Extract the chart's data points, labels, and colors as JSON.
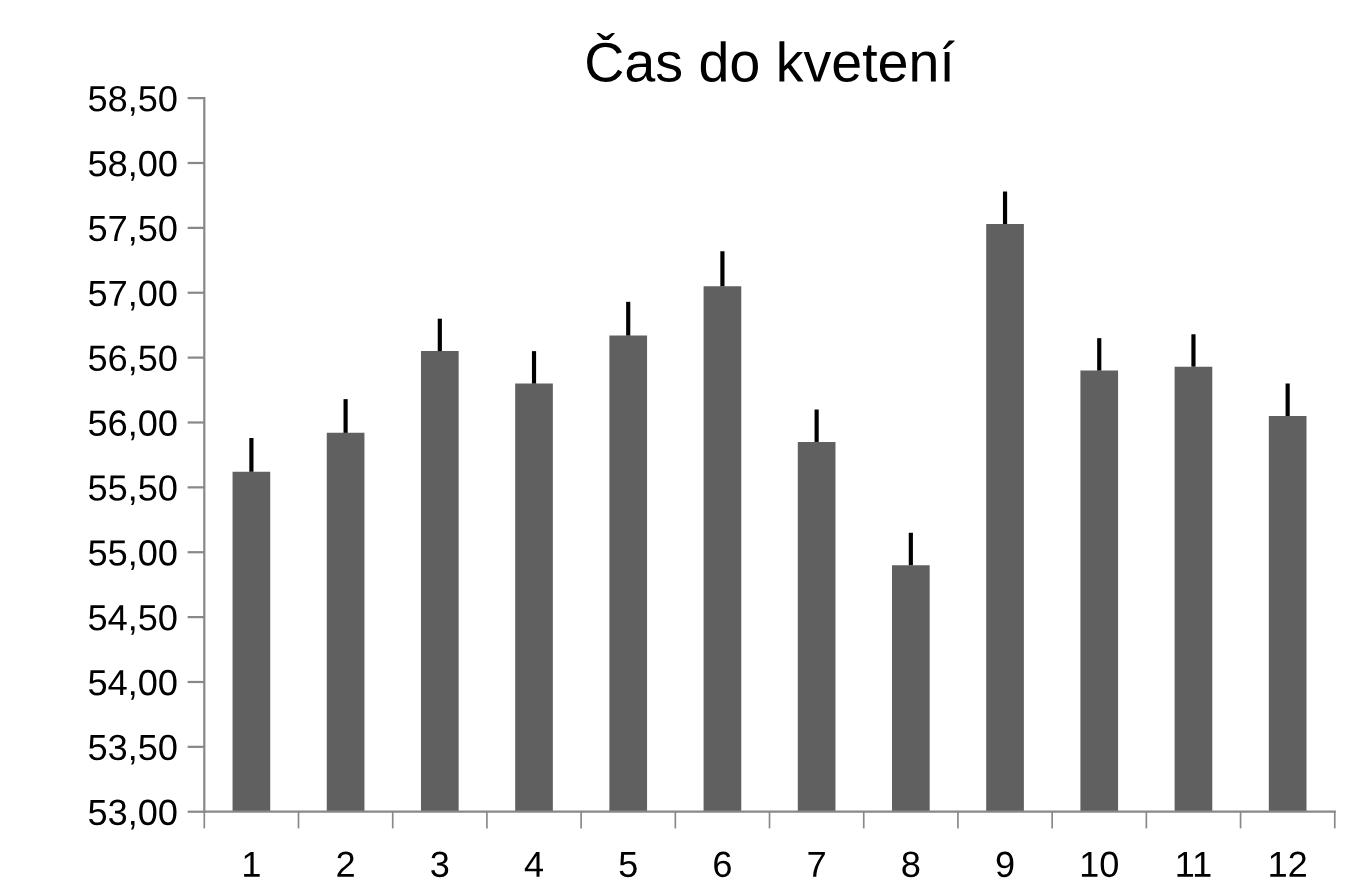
{
  "chart_data": {
    "type": "bar",
    "title": "Čas do kvetení",
    "categories": [
      "1",
      "2",
      "3",
      "4",
      "5",
      "6",
      "7",
      "8",
      "9",
      "10",
      "11",
      "12"
    ],
    "values": [
      55.62,
      55.92,
      56.55,
      56.3,
      56.67,
      57.05,
      55.85,
      54.9,
      57.53,
      56.4,
      56.43,
      56.05
    ],
    "errors": [
      [
        55.62,
        55.88
      ],
      [
        55.92,
        56.18
      ],
      [
        56.55,
        56.8
      ],
      [
        56.3,
        56.55
      ],
      [
        56.67,
        56.93
      ],
      [
        57.05,
        57.32
      ],
      [
        55.85,
        56.1
      ],
      [
        54.9,
        55.15
      ],
      [
        57.53,
        57.78
      ],
      [
        56.4,
        56.65
      ],
      [
        56.43,
        56.68
      ],
      [
        56.05,
        56.3
      ]
    ],
    "color": "#606060",
    "ylim": [
      53,
      58.5
    ],
    "yticks": [
      {
        "value": 53,
        "label": "53,00"
      },
      {
        "value": 53.5,
        "label": "53,50"
      },
      {
        "value": 54,
        "label": "54,00"
      },
      {
        "value": 54.5,
        "label": "54,50"
      },
      {
        "value": 55,
        "label": "55,00"
      },
      {
        "value": 55.5,
        "label": "55,50"
      },
      {
        "value": 56,
        "label": "56,00"
      },
      {
        "value": 56.5,
        "label": "56,50"
      },
      {
        "value": 57,
        "label": "57,00"
      },
      {
        "value": 57.5,
        "label": "57,50"
      },
      {
        "value": 58,
        "label": "58,00"
      },
      {
        "value": 58.5,
        "label": "58,50"
      }
    ],
    "grid": false
  }
}
